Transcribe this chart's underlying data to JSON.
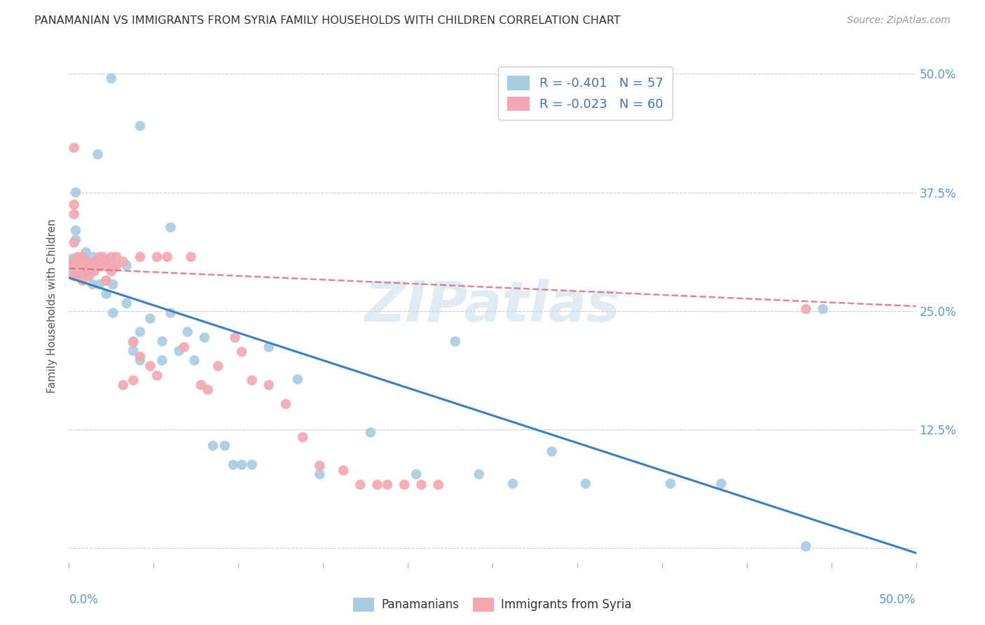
{
  "title": "PANAMANIAN VS IMMIGRANTS FROM SYRIA FAMILY HOUSEHOLDS WITH CHILDREN CORRELATION CHART",
  "source": "Source: ZipAtlas.com",
  "ylabel": "Family Households with Children",
  "y_ticks": [
    0.0,
    0.125,
    0.25,
    0.375,
    0.5
  ],
  "y_tick_labels": [
    "",
    "12.5%",
    "25.0%",
    "37.5%",
    "50.0%"
  ],
  "xlim": [
    0.0,
    0.5
  ],
  "ylim": [
    -0.015,
    0.525
  ],
  "blue_R": -0.401,
  "blue_N": 57,
  "pink_R": -0.023,
  "pink_N": 60,
  "blue_color": "#a8cce0",
  "pink_color": "#f4a7b0",
  "blue_line_color": "#3a7fc1",
  "pink_line_color": "#d9727f",
  "watermark": "ZIPatlas",
  "legend_blue_label": "Panamanians",
  "legend_pink_label": "Immigrants from Syria",
  "blue_scatter_x": [
    0.025,
    0.042,
    0.017,
    0.004,
    0.004,
    0.004,
    0.002,
    0.002,
    0.002,
    0.006,
    0.006,
    0.01,
    0.01,
    0.014,
    0.014,
    0.014,
    0.018,
    0.018,
    0.022,
    0.022,
    0.026,
    0.026,
    0.026,
    0.034,
    0.034,
    0.038,
    0.038,
    0.042,
    0.042,
    0.048,
    0.055,
    0.055,
    0.06,
    0.06,
    0.065,
    0.07,
    0.074,
    0.08,
    0.085,
    0.092,
    0.097,
    0.102,
    0.108,
    0.118,
    0.135,
    0.148,
    0.178,
    0.205,
    0.228,
    0.242,
    0.262,
    0.285,
    0.305,
    0.355,
    0.385,
    0.435,
    0.445
  ],
  "blue_scatter_y": [
    0.495,
    0.445,
    0.415,
    0.375,
    0.335,
    0.325,
    0.305,
    0.3,
    0.29,
    0.302,
    0.288,
    0.312,
    0.288,
    0.307,
    0.292,
    0.278,
    0.302,
    0.278,
    0.282,
    0.268,
    0.298,
    0.278,
    0.248,
    0.298,
    0.258,
    0.208,
    0.218,
    0.228,
    0.198,
    0.242,
    0.218,
    0.198,
    0.338,
    0.248,
    0.208,
    0.228,
    0.198,
    0.222,
    0.108,
    0.108,
    0.088,
    0.088,
    0.088,
    0.212,
    0.178,
    0.078,
    0.122,
    0.078,
    0.218,
    0.078,
    0.068,
    0.102,
    0.068,
    0.068,
    0.068,
    0.002,
    0.252
  ],
  "pink_scatter_x": [
    0.003,
    0.003,
    0.003,
    0.003,
    0.003,
    0.003,
    0.003,
    0.005,
    0.005,
    0.005,
    0.008,
    0.008,
    0.008,
    0.008,
    0.01,
    0.01,
    0.012,
    0.012,
    0.015,
    0.015,
    0.018,
    0.018,
    0.02,
    0.022,
    0.022,
    0.022,
    0.025,
    0.025,
    0.028,
    0.028,
    0.032,
    0.032,
    0.038,
    0.038,
    0.042,
    0.042,
    0.048,
    0.052,
    0.052,
    0.058,
    0.068,
    0.072,
    0.078,
    0.082,
    0.088,
    0.098,
    0.102,
    0.108,
    0.118,
    0.128,
    0.138,
    0.148,
    0.162,
    0.172,
    0.182,
    0.188,
    0.198,
    0.208,
    0.218,
    0.435
  ],
  "pink_scatter_y": [
    0.422,
    0.362,
    0.352,
    0.322,
    0.302,
    0.297,
    0.287,
    0.307,
    0.302,
    0.287,
    0.307,
    0.302,
    0.297,
    0.282,
    0.302,
    0.292,
    0.297,
    0.287,
    0.302,
    0.292,
    0.307,
    0.297,
    0.307,
    0.302,
    0.297,
    0.282,
    0.307,
    0.292,
    0.307,
    0.297,
    0.302,
    0.172,
    0.217,
    0.177,
    0.307,
    0.202,
    0.192,
    0.307,
    0.182,
    0.307,
    0.212,
    0.307,
    0.172,
    0.167,
    0.192,
    0.222,
    0.207,
    0.177,
    0.172,
    0.152,
    0.117,
    0.087,
    0.082,
    0.067,
    0.067,
    0.067,
    0.067,
    0.067,
    0.067,
    0.252
  ]
}
